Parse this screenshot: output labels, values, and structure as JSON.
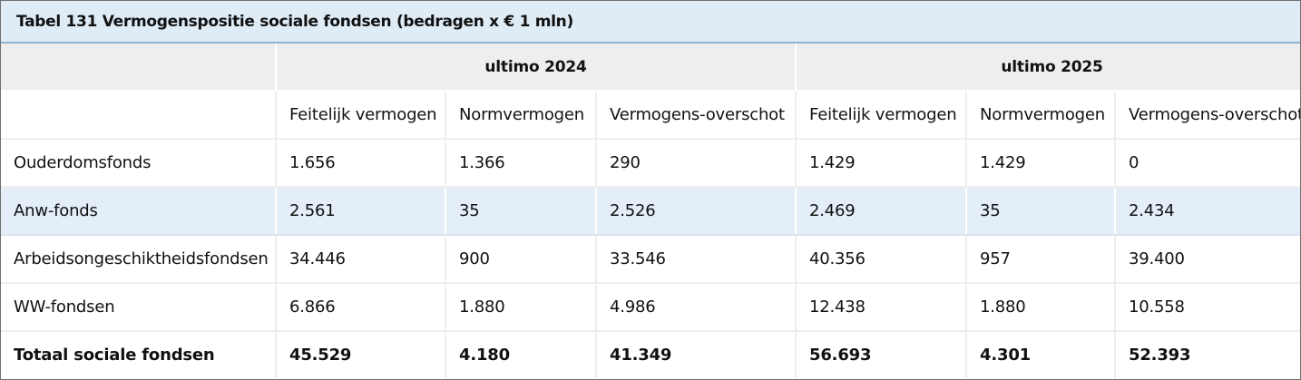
{
  "caption": "Tabel 131 Vermogenspositie sociale fondsen (bedragen x € 1 mln)",
  "groups": [
    "ultimo 2024",
    "ultimo 2025"
  ],
  "subheaders": [
    "Feitelijk vermogen",
    "Normvermogen",
    "Vermogens-overschot",
    "Feitelijk vermogen",
    "Normvermogen",
    "Vermogens-overschot"
  ],
  "rows": [
    {
      "label": "Ouderdomsfonds",
      "cells": [
        "1.656",
        "1.366",
        "290",
        "1.429",
        "1.429",
        "0"
      ]
    },
    {
      "label": "Anw-fonds",
      "cells": [
        "2.561",
        "35",
        "2.526",
        "2.469",
        "35",
        "2.434"
      ]
    },
    {
      "label": "Arbeidsongeschiktheidsfondsen",
      "cells": [
        "34.446",
        "900",
        "33.546",
        "40.356",
        "957",
        "39.400"
      ]
    },
    {
      "label": "WW-fondsen",
      "cells": [
        "6.866",
        "1.880",
        "4.986",
        "12.438",
        "1.880",
        "10.558"
      ]
    }
  ],
  "total": {
    "label": "Totaal sociale fondsen",
    "cells": [
      "45.529",
      "4.180",
      "41.349",
      "56.693",
      "4.301",
      "52.393"
    ]
  }
}
